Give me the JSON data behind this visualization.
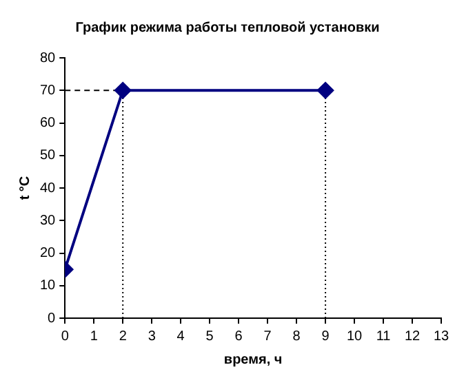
{
  "chart_data": {
    "type": "line",
    "title": "График режима работы тепловой установки",
    "xlabel": "время, ч",
    "ylabel": "t °C",
    "xlim": [
      0,
      13
    ],
    "xticks": [
      0,
      1,
      2,
      3,
      4,
      5,
      6,
      7,
      8,
      9,
      10,
      11,
      12,
      13
    ],
    "ylim": [
      0,
      80
    ],
    "yticks": [
      0,
      10,
      20,
      30,
      40,
      50,
      60,
      70,
      80
    ],
    "grid": false,
    "legend": false,
    "marker": "diamond",
    "line_style": "solid",
    "series": [
      {
        "type": "line",
        "color": "#000080",
        "x": [
          0,
          2,
          9
        ],
        "values": [
          15,
          70,
          70
        ]
      },
      {
        "type": "line",
        "color": "#000000",
        "x": [
          0,
          2
        ],
        "values": [
          70,
          70
        ],
        "line_style": "dashed",
        "marker": "none"
      },
      {
        "type": "line",
        "color": "#000000",
        "x": [
          2,
          2
        ],
        "values": [
          0,
          70
        ],
        "line_style": "dotted",
        "marker": "none"
      },
      {
        "type": "line",
        "color": "#000000",
        "x": [
          9,
          9
        ],
        "values": [
          0,
          70
        ],
        "line_style": "dotted",
        "marker": "none"
      }
    ]
  }
}
